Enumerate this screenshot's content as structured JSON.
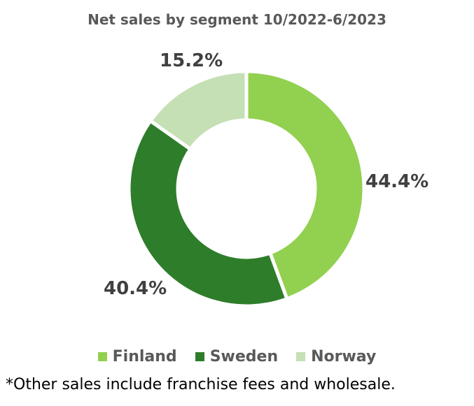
{
  "chart_data": {
    "type": "pie",
    "variant": "donut",
    "title": "Net sales by segment 10/2022-6/2023",
    "categories": [
      "Finland",
      "Sweden",
      "Norway"
    ],
    "values": [
      44.4,
      40.4,
      15.2
    ],
    "labels": [
      "44.4%",
      "40.4%",
      "15.2%"
    ],
    "colors": [
      "#92d050",
      "#2e7d2a",
      "#c5e0b4"
    ],
    "legend_position": "bottom",
    "unit": "%"
  },
  "footnote": "*Other sales include franchise fees and wholesale."
}
